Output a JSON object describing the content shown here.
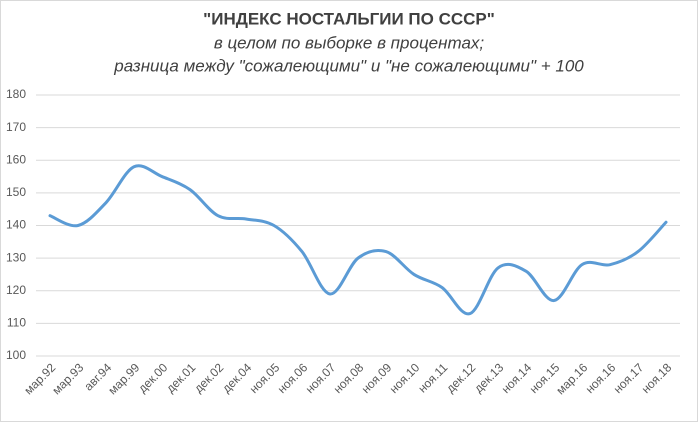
{
  "chart_data": {
    "type": "line",
    "title": "\"ИНДЕКС НОСТАЛЬГИИ ПО СССР\"",
    "subtitle": [
      "в целом по выборке в процентах;",
      "разница между \"сожалеющими\" и \"не сожалеющими\" + 100"
    ],
    "categories": [
      "мар.92",
      "мар.93",
      "авг.94",
      "мар.99",
      "дек.00",
      "дек.01",
      "дек.02",
      "дек.04",
      "ноя.05",
      "ноя.06",
      "ноя.07",
      "ноя.08",
      "ноя.09",
      "ноя.10",
      "ноя.11",
      "дек.12",
      "дек.13",
      "ноя.14",
      "ноя.15",
      "мар.16",
      "ноя.16",
      "ноя.17",
      "ноя.18"
    ],
    "values": [
      143,
      140,
      147,
      158,
      155,
      151,
      143,
      142,
      140,
      132,
      119,
      130,
      132,
      125,
      121,
      113,
      127,
      126,
      117,
      128,
      128,
      132,
      141
    ],
    "color": "#5b9bd5",
    "ylim": [
      100,
      180
    ],
    "yticks": [
      100,
      110,
      120,
      130,
      140,
      150,
      160,
      170,
      180
    ],
    "grid": true,
    "smooth": true
  }
}
